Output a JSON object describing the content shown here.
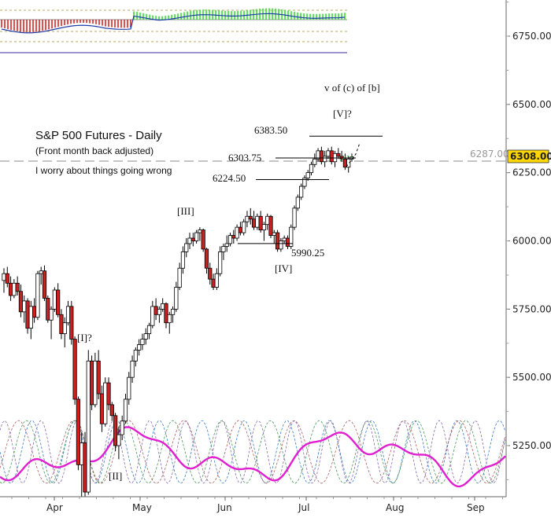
{
  "chart_data": {
    "type": "candlestick",
    "title": "S&P 500 Futures - Daily",
    "subtitle": "(Front month back adjusted)",
    "note": "I worry about things going wrong",
    "wave_label": "v of (c) of [b]",
    "y_ticks": [
      5250,
      5500,
      5750,
      6000,
      6250,
      6500,
      6750
    ],
    "y_tick_labels": [
      "5250.00",
      "5500.00",
      "5750.00",
      "6000.00",
      "6250.00",
      "6500.00",
      "6750.00"
    ],
    "x_ticks": [
      "Apr",
      "May",
      "Jun",
      "Jul",
      "Aug",
      "Sep"
    ],
    "last_price": "6308.00",
    "reference_price": "6287.00",
    "levels": [
      {
        "label": "6383.50",
        "value": 6383.5
      },
      {
        "label": "6303.75",
        "value": 6303.75
      },
      {
        "label": "6224.50",
        "value": 6224.5
      },
      {
        "label": "5990.25",
        "value": 5990.25
      }
    ],
    "wave_labels": [
      "[I]?",
      "[II]",
      "[III]",
      "[IV]",
      "[V]?"
    ],
    "candles": [
      [
        5855,
        5900,
        5810,
        5880
      ],
      [
        5880,
        5905,
        5830,
        5845
      ],
      [
        5845,
        5870,
        5780,
        5800
      ],
      [
        5800,
        5860,
        5790,
        5845
      ],
      [
        5845,
        5870,
        5800,
        5815
      ],
      [
        5815,
        5840,
        5720,
        5740
      ],
      [
        5740,
        5800,
        5700,
        5780
      ],
      [
        5780,
        5790,
        5660,
        5680
      ],
      [
        5680,
        5780,
        5640,
        5760
      ],
      [
        5760,
        5790,
        5700,
        5720
      ],
      [
        5720,
        5890,
        5710,
        5880
      ],
      [
        5880,
        5905,
        5840,
        5890
      ],
      [
        5890,
        5910,
        5780,
        5790
      ],
      [
        5790,
        5800,
        5700,
        5710
      ],
      [
        5710,
        5760,
        5640,
        5750
      ],
      [
        5750,
        5830,
        5740,
        5820
      ],
      [
        5820,
        5845,
        5720,
        5730
      ],
      [
        5730,
        5750,
        5640,
        5660
      ],
      [
        5660,
        5720,
        5610,
        5700
      ],
      [
        5700,
        5780,
        5690,
        5760
      ],
      [
        5760,
        5780,
        5620,
        5640
      ],
      [
        5640,
        5650,
        5400,
        5420
      ],
      [
        5420,
        5430,
        5160,
        5180
      ],
      [
        5180,
        5300,
        5050,
        5260
      ],
      [
        5260,
        5300,
        5060,
        5080
      ],
      [
        5080,
        5600,
        5070,
        5560
      ],
      [
        5560,
        5580,
        5380,
        5400
      ],
      [
        5400,
        5590,
        5390,
        5560
      ],
      [
        5560,
        5600,
        5420,
        5440
      ],
      [
        5440,
        5470,
        5300,
        5330
      ],
      [
        5330,
        5500,
        5320,
        5480
      ],
      [
        5480,
        5500,
        5380,
        5400
      ],
      [
        5400,
        5410,
        5340,
        5360
      ],
      [
        5360,
        5370,
        5230,
        5250
      ],
      [
        5250,
        5320,
        5200,
        5290
      ],
      [
        5290,
        5360,
        5270,
        5340
      ],
      [
        5340,
        5440,
        5330,
        5420
      ],
      [
        5420,
        5520,
        5400,
        5500
      ],
      [
        5500,
        5580,
        5480,
        5560
      ],
      [
        5560,
        5610,
        5540,
        5600
      ],
      [
        5600,
        5640,
        5580,
        5620
      ],
      [
        5620,
        5660,
        5600,
        5640
      ],
      [
        5640,
        5680,
        5620,
        5660
      ],
      [
        5660,
        5700,
        5640,
        5690
      ],
      [
        5690,
        5780,
        5680,
        5760
      ],
      [
        5760,
        5790,
        5710,
        5730
      ],
      [
        5730,
        5760,
        5700,
        5750
      ],
      [
        5750,
        5790,
        5740,
        5770
      ],
      [
        5770,
        5775,
        5680,
        5700
      ],
      [
        5700,
        5740,
        5660,
        5730
      ],
      [
        5730,
        5760,
        5700,
        5750
      ],
      [
        5750,
        5850,
        5740,
        5830
      ],
      [
        5830,
        5920,
        5820,
        5900
      ],
      [
        5900,
        5980,
        5880,
        5960
      ],
      [
        5960,
        6010,
        5940,
        5990
      ],
      [
        5990,
        6030,
        5970,
        6010
      ],
      [
        6010,
        6030,
        5980,
        6000
      ],
      [
        6000,
        6040,
        5990,
        6030
      ],
      [
        6030,
        6050,
        6000,
        6040
      ],
      [
        6040,
        6045,
        5960,
        5970
      ],
      [
        5970,
        5975,
        5880,
        5900
      ],
      [
        5900,
        5920,
        5840,
        5860
      ],
      [
        5860,
        5880,
        5820,
        5830
      ],
      [
        5830,
        5900,
        5820,
        5880
      ],
      [
        5880,
        5980,
        5870,
        5960
      ],
      [
        5960,
        5990,
        5930,
        5980
      ],
      [
        5980,
        6020,
        5960,
        5990
      ],
      [
        5990,
        6030,
        5980,
        6020
      ],
      [
        6020,
        6040,
        5990,
        6010
      ],
      [
        6010,
        6060,
        6000,
        6050
      ],
      [
        6050,
        6070,
        6020,
        6030
      ],
      [
        6030,
        6080,
        6020,
        6070
      ],
      [
        6070,
        6110,
        6050,
        6090
      ],
      [
        6090,
        6120,
        6060,
        6080
      ],
      [
        6080,
        6110,
        6040,
        6050
      ],
      [
        6050,
        6100,
        6040,
        6090
      ],
      [
        6090,
        6110,
        6030,
        6040
      ],
      [
        6040,
        6070,
        6000,
        6060
      ],
      [
        6060,
        6100,
        6040,
        6090
      ],
      [
        6090,
        6095,
        6010,
        6020
      ],
      [
        6020,
        6040,
        5990,
        6030
      ],
      [
        6030,
        6040,
        5960,
        5970
      ],
      [
        5970,
        6010,
        5960,
        6000
      ],
      [
        6000,
        6020,
        5990,
        6010
      ],
      [
        6010,
        6020,
        5970,
        5980
      ],
      [
        5980,
        6060,
        5970,
        6050
      ],
      [
        6050,
        6130,
        6040,
        6120
      ],
      [
        6120,
        6170,
        6110,
        6160
      ],
      [
        6160,
        6210,
        6150,
        6200
      ],
      [
        6200,
        6240,
        6190,
        6230
      ],
      [
        6230,
        6260,
        6220,
        6250
      ],
      [
        6250,
        6290,
        6240,
        6280
      ],
      [
        6280,
        6320,
        6270,
        6300
      ],
      [
        6300,
        6340,
        6290,
        6330
      ],
      [
        6330,
        6345,
        6280,
        6290
      ],
      [
        6290,
        6330,
        6270,
        6310
      ],
      [
        6310,
        6340,
        6300,
        6330
      ],
      [
        6330,
        6345,
        6280,
        6290
      ],
      [
        6290,
        6330,
        6270,
        6320
      ],
      [
        6320,
        6340,
        6300,
        6310
      ],
      [
        6310,
        6330,
        6290,
        6300
      ],
      [
        6300,
        6320,
        6260,
        6270
      ],
      [
        6270,
        6310,
        6250,
        6300
      ],
      [
        6300,
        6320,
        6290,
        6308
      ]
    ]
  }
}
